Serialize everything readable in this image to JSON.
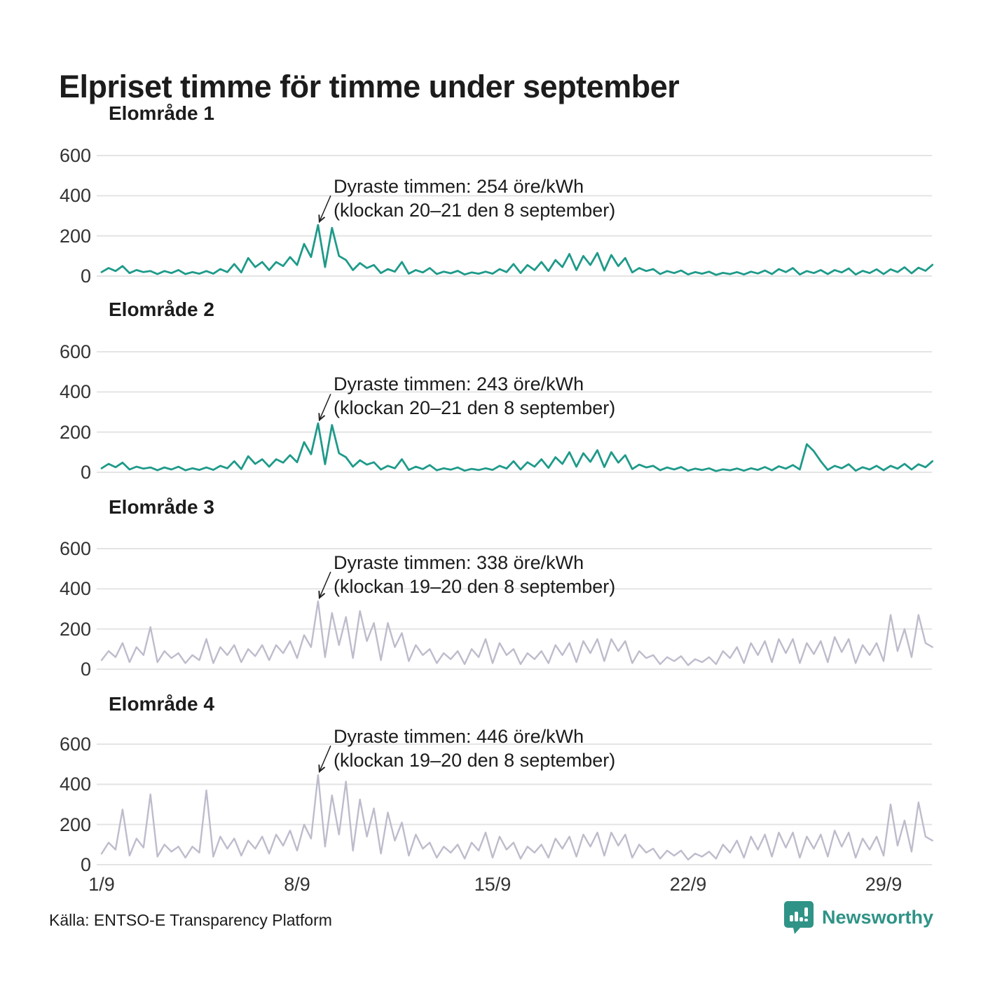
{
  "title": "Elpriset timme för timme under september",
  "source": "Källa: ENTSO-E Transparency Platform",
  "brand": {
    "name": "Newsworthy",
    "color": "#2f9387",
    "icon": "bar-chart-speech-bubble"
  },
  "colors": {
    "teal_line": "#1e9a8a",
    "lavender_line": "#bdbccc",
    "grid": "#e4e4e4",
    "text": "#1c1c1c"
  },
  "chart_data": {
    "type": "line",
    "title": "Elpriset timme för timme under september",
    "x_unit": "date in September (hourly electricity price, öre/kWh)",
    "xticks": [
      {
        "day": 1,
        "label": "1/9"
      },
      {
        "day": 8,
        "label": "8/9"
      },
      {
        "day": 15,
        "label": "15/9"
      },
      {
        "day": 22,
        "label": "22/9"
      },
      {
        "day": 29,
        "label": "29/9"
      }
    ],
    "ylim": [
      0,
      600
    ],
    "yticks": [
      0,
      200,
      400,
      600
    ],
    "grid": "horizontal-only",
    "legend": "none",
    "sample_hours": [
      0,
      6,
      12,
      18
    ],
    "series": [
      {
        "name": "Elområde 1",
        "color": "#1e9a8a",
        "max_value": 254,
        "annotation": {
          "line1": "Dyraste timmen: 254 öre/kWh",
          "line2": "(klockan 20–21 den 8 september)"
        },
        "daily_values_6h": [
          [
            20,
            40,
            25,
            50
          ],
          [
            15,
            30,
            20,
            25
          ],
          [
            10,
            25,
            15,
            30
          ],
          [
            10,
            20,
            12,
            25
          ],
          [
            12,
            35,
            20,
            60
          ],
          [
            18,
            90,
            45,
            70
          ],
          [
            30,
            70,
            50,
            95
          ],
          [
            55,
            160,
            95,
            254
          ],
          [
            45,
            240,
            100,
            80
          ],
          [
            30,
            65,
            40,
            55
          ],
          [
            15,
            35,
            22,
            70
          ],
          [
            12,
            30,
            18,
            40
          ],
          [
            10,
            22,
            14,
            26
          ],
          [
            8,
            18,
            12,
            22
          ],
          [
            12,
            35,
            20,
            60
          ],
          [
            15,
            55,
            30,
            70
          ],
          [
            25,
            80,
            45,
            110
          ],
          [
            30,
            100,
            55,
            115
          ],
          [
            28,
            105,
            50,
            90
          ],
          [
            18,
            40,
            25,
            35
          ],
          [
            10,
            25,
            15,
            28
          ],
          [
            8,
            20,
            12,
            22
          ],
          [
            6,
            16,
            10,
            20
          ],
          [
            8,
            22,
            13,
            28
          ],
          [
            10,
            35,
            20,
            40
          ],
          [
            8,
            25,
            15,
            30
          ],
          [
            10,
            30,
            18,
            38
          ],
          [
            8,
            26,
            15,
            34
          ],
          [
            10,
            34,
            20,
            44
          ],
          [
            14,
            42,
            26,
            56
          ]
        ]
      },
      {
        "name": "Elområde 2",
        "color": "#1e9a8a",
        "max_value": 243,
        "annotation": {
          "line1": "Dyraste timmen: 243 öre/kWh",
          "line2": "(klockan 20–21 den 8 september)"
        },
        "daily_values_6h": [
          [
            20,
            42,
            25,
            48
          ],
          [
            14,
            28,
            18,
            24
          ],
          [
            10,
            24,
            14,
            28
          ],
          [
            10,
            20,
            12,
            24
          ],
          [
            12,
            32,
            20,
            55
          ],
          [
            16,
            80,
            42,
            65
          ],
          [
            28,
            65,
            48,
            85
          ],
          [
            50,
            150,
            90,
            243
          ],
          [
            40,
            235,
            95,
            75
          ],
          [
            28,
            60,
            38,
            50
          ],
          [
            14,
            32,
            20,
            65
          ],
          [
            12,
            28,
            16,
            36
          ],
          [
            10,
            20,
            13,
            24
          ],
          [
            8,
            17,
            11,
            20
          ],
          [
            12,
            32,
            19,
            55
          ],
          [
            14,
            50,
            28,
            65
          ],
          [
            22,
            75,
            42,
            100
          ],
          [
            28,
            95,
            52,
            110
          ],
          [
            26,
            100,
            48,
            85
          ],
          [
            16,
            38,
            24,
            32
          ],
          [
            10,
            24,
            14,
            26
          ],
          [
            8,
            18,
            11,
            20
          ],
          [
            6,
            15,
            10,
            19
          ],
          [
            8,
            20,
            12,
            26
          ],
          [
            10,
            30,
            18,
            36
          ],
          [
            14,
            140,
            105,
            55
          ],
          [
            12,
            32,
            20,
            40
          ],
          [
            8,
            25,
            14,
            32
          ],
          [
            10,
            32,
            18,
            42
          ],
          [
            14,
            40,
            25,
            55
          ]
        ]
      },
      {
        "name": "Elområde 3",
        "color": "#bdbccc",
        "max_value": 338,
        "annotation": {
          "line1": "Dyraste timmen: 338 öre/kWh",
          "line2": "(klockan 19–20 den 8 september)"
        },
        "daily_values_6h": [
          [
            45,
            90,
            60,
            130
          ],
          [
            35,
            110,
            70,
            210
          ],
          [
            35,
            90,
            55,
            80
          ],
          [
            30,
            70,
            45,
            150
          ],
          [
            30,
            110,
            70,
            120
          ],
          [
            35,
            100,
            65,
            120
          ],
          [
            45,
            120,
            80,
            140
          ],
          [
            55,
            170,
            110,
            338
          ],
          [
            60,
            280,
            120,
            260
          ],
          [
            55,
            290,
            140,
            230
          ],
          [
            45,
            230,
            110,
            180
          ],
          [
            40,
            120,
            70,
            100
          ],
          [
            30,
            80,
            50,
            90
          ],
          [
            25,
            100,
            60,
            150
          ],
          [
            30,
            130,
            70,
            100
          ],
          [
            25,
            80,
            50,
            90
          ],
          [
            30,
            120,
            70,
            130
          ],
          [
            35,
            140,
            80,
            150
          ],
          [
            40,
            150,
            90,
            140
          ],
          [
            30,
            90,
            55,
            70
          ],
          [
            25,
            60,
            40,
            65
          ],
          [
            20,
            50,
            35,
            60
          ],
          [
            25,
            90,
            55,
            110
          ],
          [
            30,
            130,
            70,
            140
          ],
          [
            35,
            150,
            80,
            150
          ],
          [
            30,
            130,
            75,
            140
          ],
          [
            35,
            160,
            85,
            150
          ],
          [
            30,
            120,
            70,
            130
          ],
          [
            40,
            270,
            90,
            200
          ],
          [
            60,
            270,
            130,
            110
          ]
        ]
      },
      {
        "name": "Elområde 4",
        "color": "#bdbccc",
        "max_value": 446,
        "annotation": {
          "line1": "Dyraste timmen: 446 öre/kWh",
          "line2": "(klockan 19–20 den 8 september)"
        },
        "daily_values_6h": [
          [
            55,
            110,
            75,
            275
          ],
          [
            45,
            130,
            85,
            350
          ],
          [
            40,
            100,
            65,
            90
          ],
          [
            35,
            90,
            60,
            370
          ],
          [
            40,
            140,
            80,
            130
          ],
          [
            45,
            120,
            80,
            140
          ],
          [
            55,
            150,
            95,
            170
          ],
          [
            70,
            200,
            130,
            446
          ],
          [
            90,
            345,
            150,
            414
          ],
          [
            70,
            325,
            140,
            280
          ],
          [
            55,
            260,
            120,
            210
          ],
          [
            45,
            150,
            80,
            110
          ],
          [
            35,
            90,
            60,
            100
          ],
          [
            30,
            110,
            70,
            160
          ],
          [
            35,
            140,
            75,
            110
          ],
          [
            30,
            90,
            60,
            100
          ],
          [
            35,
            130,
            80,
            140
          ],
          [
            40,
            150,
            90,
            160
          ],
          [
            45,
            160,
            95,
            150
          ],
          [
            35,
            100,
            60,
            80
          ],
          [
            30,
            70,
            45,
            70
          ],
          [
            25,
            55,
            40,
            65
          ],
          [
            30,
            100,
            60,
            120
          ],
          [
            35,
            140,
            75,
            150
          ],
          [
            40,
            160,
            85,
            160
          ],
          [
            35,
            140,
            80,
            150
          ],
          [
            40,
            170,
            90,
            160
          ],
          [
            35,
            130,
            75,
            140
          ],
          [
            45,
            300,
            95,
            220
          ],
          [
            65,
            310,
            140,
            120
          ]
        ]
      }
    ]
  }
}
